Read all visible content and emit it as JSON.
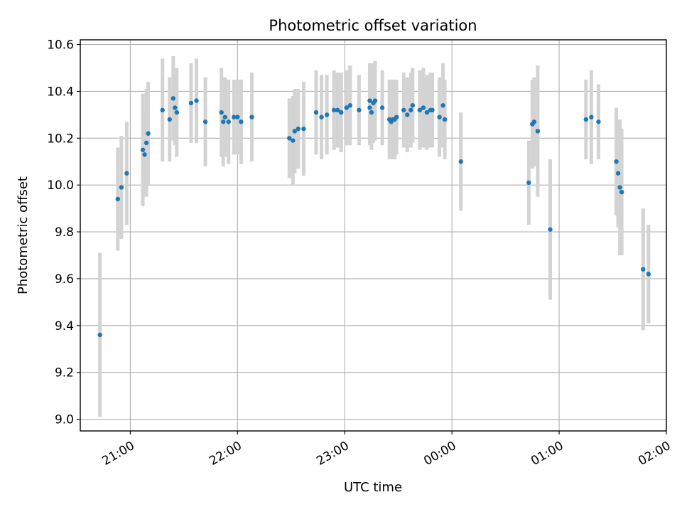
{
  "chart_data": {
    "type": "scatter",
    "title": "Photometric offset variation",
    "xlabel": "UTC time",
    "ylabel": "Photometric offset",
    "x_ticks": [
      "21:00",
      "22:00",
      "23:00",
      "00:00",
      "01:00",
      "02:00"
    ],
    "y_ticks": [
      "9.0",
      "9.2",
      "9.4",
      "9.6",
      "9.8",
      "10.0",
      "10.2",
      "10.4",
      "10.6"
    ],
    "xlim": [
      "2000-01-01T20:32",
      "2000-01-02T02:00"
    ],
    "ylim": [
      8.95,
      10.62
    ],
    "grid": true,
    "colors": {
      "point": "#1f77b4",
      "errorbar": "#d3d3d3"
    },
    "series": [
      {
        "points": [
          {
            "t": "2000-01-01T20:43",
            "y": 9.36,
            "err": 0.35
          },
          {
            "t": "2000-01-01T20:53",
            "y": 9.94,
            "err": 0.22
          },
          {
            "t": "2000-01-01T20:55",
            "y": 9.99,
            "err": 0.22
          },
          {
            "t": "2000-01-01T20:58",
            "y": 10.05,
            "err": 0.22
          },
          {
            "t": "2000-01-01T21:07",
            "y": 10.15,
            "err": 0.24
          },
          {
            "t": "2000-01-01T21:08",
            "y": 10.13,
            "err": 0.18
          },
          {
            "t": "2000-01-01T21:09",
            "y": 10.18,
            "err": 0.23
          },
          {
            "t": "2000-01-01T21:10",
            "y": 10.22,
            "err": 0.22
          },
          {
            "t": "2000-01-01T21:18",
            "y": 10.32,
            "err": 0.22
          },
          {
            "t": "2000-01-01T21:22",
            "y": 10.28,
            "err": 0.18
          },
          {
            "t": "2000-01-01T21:24",
            "y": 10.37,
            "err": 0.18
          },
          {
            "t": "2000-01-01T21:25",
            "y": 10.33,
            "err": 0.16
          },
          {
            "t": "2000-01-01T21:26",
            "y": 10.31,
            "err": 0.19
          },
          {
            "t": "2000-01-01T21:34",
            "y": 10.35,
            "err": 0.17
          },
          {
            "t": "2000-01-01T21:37",
            "y": 10.36,
            "err": 0.18
          },
          {
            "t": "2000-01-01T21:42",
            "y": 10.27,
            "err": 0.19
          },
          {
            "t": "2000-01-01T21:51",
            "y": 10.31,
            "err": 0.19
          },
          {
            "t": "2000-01-01T21:52",
            "y": 10.27,
            "err": 0.19
          },
          {
            "t": "2000-01-01T21:53",
            "y": 10.29,
            "err": 0.17
          },
          {
            "t": "2000-01-01T21:55",
            "y": 10.27,
            "err": 0.18
          },
          {
            "t": "2000-01-01T21:58",
            "y": 10.29,
            "err": 0.16
          },
          {
            "t": "2000-01-01T22:00",
            "y": 10.29,
            "err": 0.16
          },
          {
            "t": "2000-01-01T22:02",
            "y": 10.27,
            "err": 0.18
          },
          {
            "t": "2000-01-01T22:08",
            "y": 10.29,
            "err": 0.19
          },
          {
            "t": "2000-01-01T22:29",
            "y": 10.2,
            "err": 0.17
          },
          {
            "t": "2000-01-01T22:31",
            "y": 10.19,
            "err": 0.19
          },
          {
            "t": "2000-01-01T22:32",
            "y": 10.23,
            "err": 0.18
          },
          {
            "t": "2000-01-01T22:34",
            "y": 10.24,
            "err": 0.17
          },
          {
            "t": "2000-01-01T22:37",
            "y": 10.24,
            "err": 0.2
          },
          {
            "t": "2000-01-01T22:44",
            "y": 10.31,
            "err": 0.18
          },
          {
            "t": "2000-01-01T22:47",
            "y": 10.29,
            "err": 0.18
          },
          {
            "t": "2000-01-01T22:50",
            "y": 10.3,
            "err": 0.17
          },
          {
            "t": "2000-01-01T22:54",
            "y": 10.32,
            "err": 0.17
          },
          {
            "t": "2000-01-01T22:56",
            "y": 10.32,
            "err": 0.16
          },
          {
            "t": "2000-01-01T22:58",
            "y": 10.31,
            "err": 0.17
          },
          {
            "t": "2000-01-01T23:01",
            "y": 10.33,
            "err": 0.16
          },
          {
            "t": "2000-01-01T23:03",
            "y": 10.34,
            "err": 0.17
          },
          {
            "t": "2000-01-01T23:08",
            "y": 10.32,
            "err": 0.15
          },
          {
            "t": "2000-01-01T23:14",
            "y": 10.33,
            "err": 0.16
          },
          {
            "t": "2000-01-01T23:14",
            "y": 10.36,
            "err": 0.16
          },
          {
            "t": "2000-01-01T23:15",
            "y": 10.31,
            "err": 0.16
          },
          {
            "t": "2000-01-01T23:16",
            "y": 10.35,
            "err": 0.17
          },
          {
            "t": "2000-01-01T23:17",
            "y": 10.36,
            "err": 0.17
          },
          {
            "t": "2000-01-01T23:21",
            "y": 10.33,
            "err": 0.16
          },
          {
            "t": "2000-01-01T23:25",
            "y": 10.28,
            "err": 0.17
          },
          {
            "t": "2000-01-01T23:26",
            "y": 10.27,
            "err": 0.16
          },
          {
            "t": "2000-01-01T23:27",
            "y": 10.28,
            "err": 0.17
          },
          {
            "t": "2000-01-01T23:28",
            "y": 10.28,
            "err": 0.17
          },
          {
            "t": "2000-01-01T23:29",
            "y": 10.29,
            "err": 0.16
          },
          {
            "t": "2000-01-01T23:33",
            "y": 10.32,
            "err": 0.16
          },
          {
            "t": "2000-01-01T23:35",
            "y": 10.3,
            "err": 0.16
          },
          {
            "t": "2000-01-01T23:37",
            "y": 10.32,
            "err": 0.16
          },
          {
            "t": "2000-01-01T23:38",
            "y": 10.34,
            "err": 0.16
          },
          {
            "t": "2000-01-01T23:42",
            "y": 10.32,
            "err": 0.17
          },
          {
            "t": "2000-01-01T23:44",
            "y": 10.33,
            "err": 0.17
          },
          {
            "t": "2000-01-01T23:46",
            "y": 10.31,
            "err": 0.16
          },
          {
            "t": "2000-01-01T23:48",
            "y": 10.32,
            "err": 0.16
          },
          {
            "t": "2000-01-01T23:49",
            "y": 10.32,
            "err": 0.16
          },
          {
            "t": "2000-01-01T23:53",
            "y": 10.29,
            "err": 0.17
          },
          {
            "t": "2000-01-01T23:55",
            "y": 10.34,
            "err": 0.18
          },
          {
            "t": "2000-01-01T23:56",
            "y": 10.28,
            "err": 0.17
          },
          {
            "t": "2000-01-02T00:05",
            "y": 10.1,
            "err": 0.21
          },
          {
            "t": "2000-01-02T00:43",
            "y": 10.01,
            "err": 0.18
          },
          {
            "t": "2000-01-02T00:45",
            "y": 10.26,
            "err": 0.19
          },
          {
            "t": "2000-01-02T00:46",
            "y": 10.27,
            "err": 0.19
          },
          {
            "t": "2000-01-02T00:48",
            "y": 10.23,
            "err": 0.28
          },
          {
            "t": "2000-01-02T00:55",
            "y": 9.81,
            "err": 0.3
          },
          {
            "t": "2000-01-02T01:15",
            "y": 10.28,
            "err": 0.17
          },
          {
            "t": "2000-01-02T01:18",
            "y": 10.29,
            "err": 0.2
          },
          {
            "t": "2000-01-02T01:22",
            "y": 10.27,
            "err": 0.16
          },
          {
            "t": "2000-01-02T01:32",
            "y": 10.1,
            "err": 0.23
          },
          {
            "t": "2000-01-02T01:33",
            "y": 10.05,
            "err": 0.23
          },
          {
            "t": "2000-01-02T01:34",
            "y": 9.99,
            "err": 0.29
          },
          {
            "t": "2000-01-02T01:35",
            "y": 9.97,
            "err": 0.27
          },
          {
            "t": "2000-01-02T01:47",
            "y": 9.64,
            "err": 0.26
          },
          {
            "t": "2000-01-02T01:50",
            "y": 9.62,
            "err": 0.21
          }
        ]
      }
    ]
  }
}
